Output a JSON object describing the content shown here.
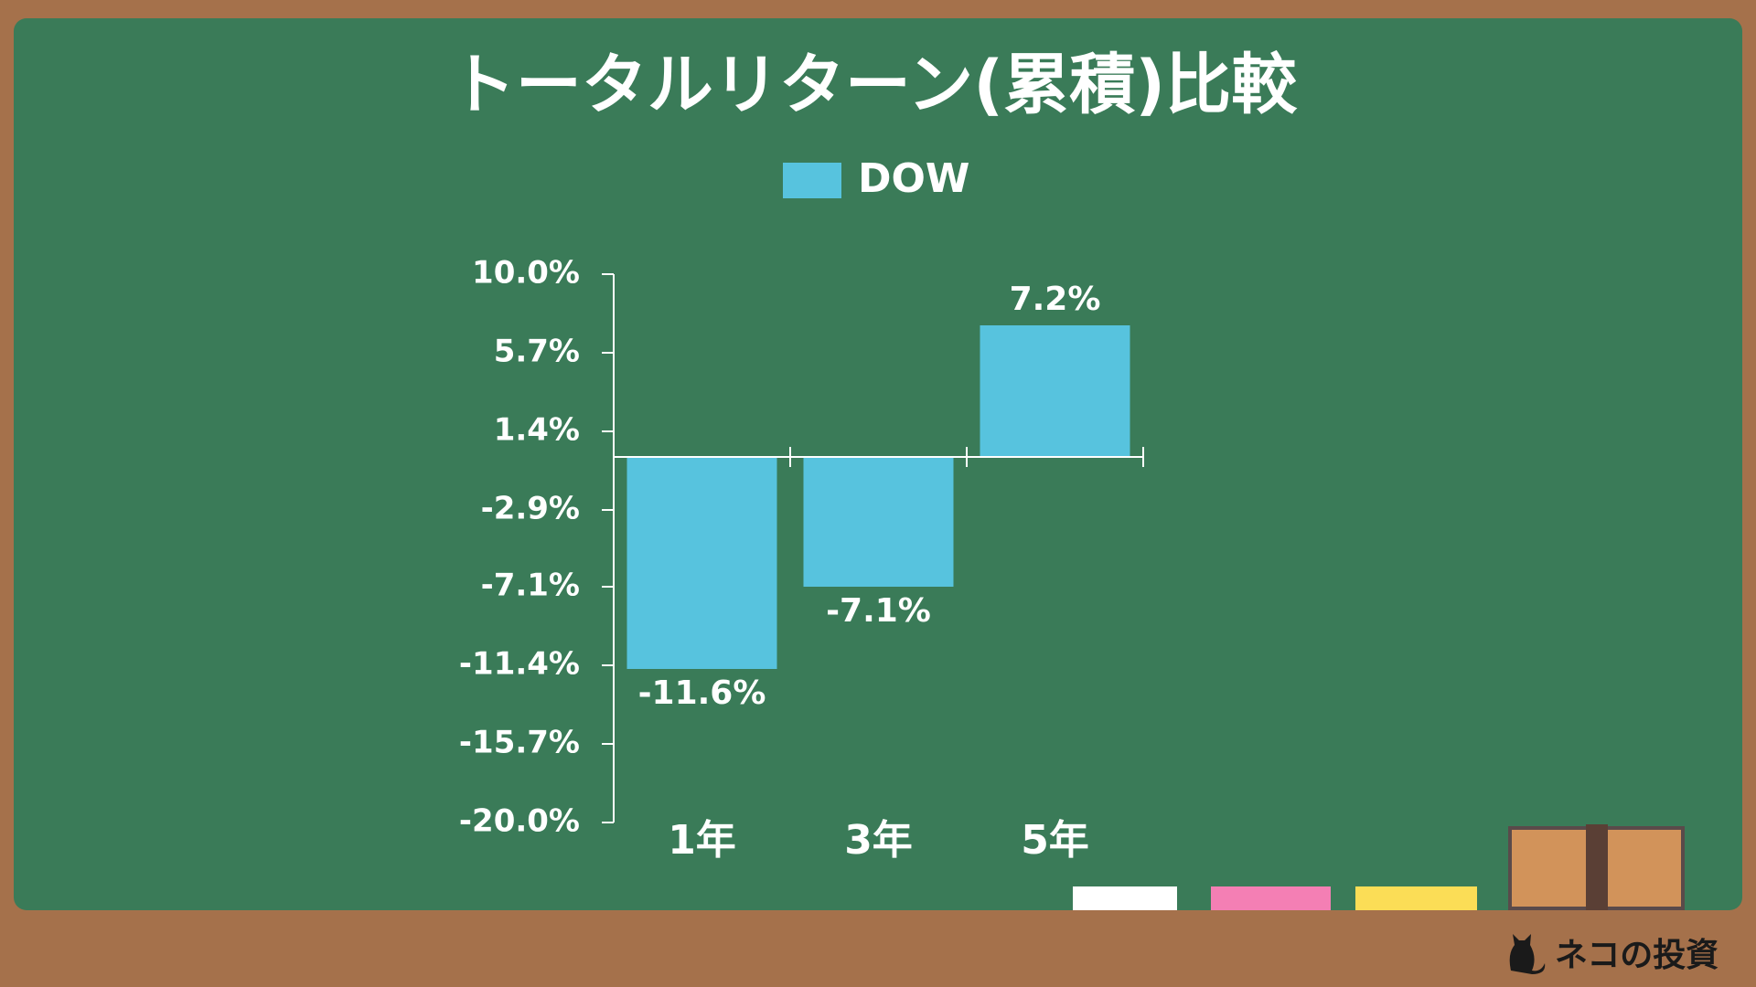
{
  "chart_data": {
    "type": "bar",
    "title": "トータルリターン(累積)比較",
    "categories": [
      "1年",
      "3年",
      "5年"
    ],
    "series": [
      {
        "name": "DOW",
        "color": "#57c3de",
        "values": [
          -11.6,
          -7.1,
          7.2
        ],
        "value_labels": [
          "-11.6%",
          "-7.1%",
          "7.2%"
        ]
      }
    ],
    "ylim": [
      -20,
      10
    ],
    "yticks": [
      {
        "value": 10,
        "label": "10.0%"
      },
      {
        "value": 5.7,
        "label": "5.7%"
      },
      {
        "value": 1.4,
        "label": "1.4%"
      },
      {
        "value": -2.9,
        "label": "-2.9%"
      },
      {
        "value": -7.1,
        "label": "-7.1%"
      },
      {
        "value": -11.4,
        "label": "-11.4%"
      },
      {
        "value": -15.7,
        "label": "-15.7%"
      },
      {
        "value": -20,
        "label": "-20.0%"
      }
    ],
    "grid": false
  },
  "watermark": "ネコの投資"
}
